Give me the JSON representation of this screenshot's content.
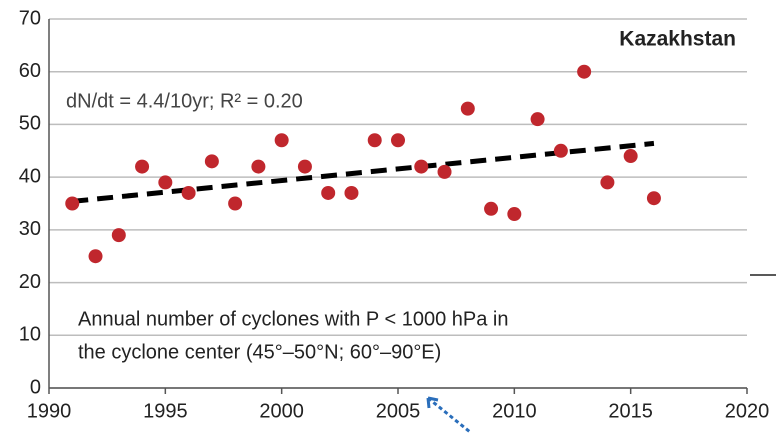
{
  "chart_data": {
    "type": "scatter",
    "title": "Kazakhstan",
    "annotations": [
      "dN/dt = 4.4/10yr;  R² = 0.20",
      "Annual number of cyclones with P < 1000 hPa in",
      "the cyclone center (45°–50°N; 60°–90°E)"
    ],
    "x": [
      1991,
      1992,
      1993,
      1994,
      1995,
      1996,
      1997,
      1998,
      1999,
      2000,
      2001,
      2002,
      2003,
      2004,
      2005,
      2006,
      2007,
      2008,
      2009,
      2010,
      2011,
      2012,
      2013,
      2014,
      2015,
      2016
    ],
    "series": [
      {
        "color": "#c0272d",
        "values": [
          35,
          25,
          29,
          42,
          39,
          37,
          43,
          35,
          42,
          47,
          42,
          37,
          37,
          47,
          47,
          42,
          41,
          53,
          34,
          33,
          51,
          45,
          60,
          39,
          44,
          36
        ]
      }
    ],
    "trend": {
      "x": [
        1991,
        2016
      ],
      "values": [
        35.4,
        46.4
      ],
      "color": "#000000"
    },
    "xlim": [
      1990,
      2020
    ],
    "xticks": [
      1990,
      1995,
      2000,
      2005,
      2010,
      2015,
      2020
    ],
    "ylim": [
      0,
      70
    ],
    "yticks": [
      0,
      10,
      20,
      30,
      40,
      50,
      60,
      70
    ],
    "grid": true
  }
}
